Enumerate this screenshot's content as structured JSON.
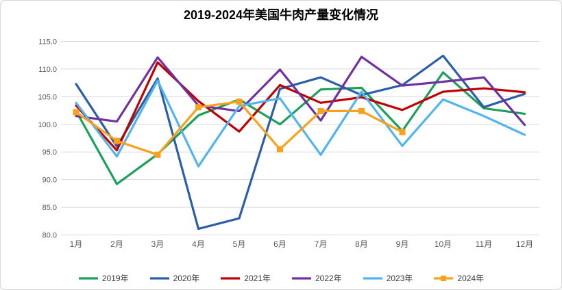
{
  "title": "2019-2024年美国牛肉产量变化情况",
  "colors": {
    "background": "#FFFFFF",
    "border": "#D6D6D6",
    "gridline": "#D9D9D9",
    "axis_text": "#595959",
    "title_text": "#000000",
    "legend_text": "#3A3A3A"
  },
  "chart_data": {
    "type": "line",
    "title": "2019-2024年美国牛肉产量变化情况",
    "xlabel": "",
    "ylabel": "",
    "ylim": [
      80,
      115
    ],
    "ytick_step": 5,
    "ytick_labels": [
      "115.0",
      "110.0",
      "105.0",
      "100.0",
      "95.0",
      "90.0",
      "85.0",
      "80.0"
    ],
    "grid": true,
    "legend_position": "bottom",
    "categories": [
      "1月",
      "2月",
      "3月",
      "4月",
      "5月",
      "6月",
      "7月",
      "8月",
      "9月",
      "10月",
      "11月",
      "12月"
    ],
    "series": [
      {
        "name": "2019年",
        "color": "#1BA05A",
        "marker": "none",
        "values": [
          102.4,
          89.2,
          94.6,
          101.6,
          104.5,
          100.0,
          106.3,
          106.6,
          98.8,
          109.4,
          102.9,
          101.9
        ]
      },
      {
        "name": "2020年",
        "color": "#2B5DA9",
        "marker": "none",
        "values": [
          107.3,
          96.0,
          108.3,
          81.1,
          83.0,
          106.4,
          108.5,
          105.3,
          107.1,
          112.4,
          103.1,
          105.5
        ]
      },
      {
        "name": "2021年",
        "color": "#C00000",
        "marker": "none",
        "values": [
          103.4,
          95.3,
          111.2,
          104.2,
          98.7,
          107.1,
          103.9,
          104.9,
          102.6,
          105.9,
          106.5,
          105.8
        ]
      },
      {
        "name": "2022年",
        "color": "#7030A0",
        "marker": "none",
        "values": [
          101.5,
          100.5,
          112.1,
          103.4,
          102.4,
          109.9,
          100.7,
          112.2,
          107.0,
          107.7,
          108.5,
          99.9
        ]
      },
      {
        "name": "2023年",
        "color": "#4FB4F0",
        "marker": "none",
        "values": [
          103.9,
          94.2,
          107.9,
          92.4,
          103.3,
          104.7,
          94.5,
          105.9,
          96.1,
          104.5,
          101.5,
          98.1
        ]
      },
      {
        "name": "2024年",
        "color": "#F7A11C",
        "marker": "square",
        "values": [
          102.2,
          97.0,
          94.5,
          103.1,
          104.1,
          95.5,
          102.4,
          102.4,
          98.6,
          null,
          null,
          null
        ]
      }
    ]
  }
}
